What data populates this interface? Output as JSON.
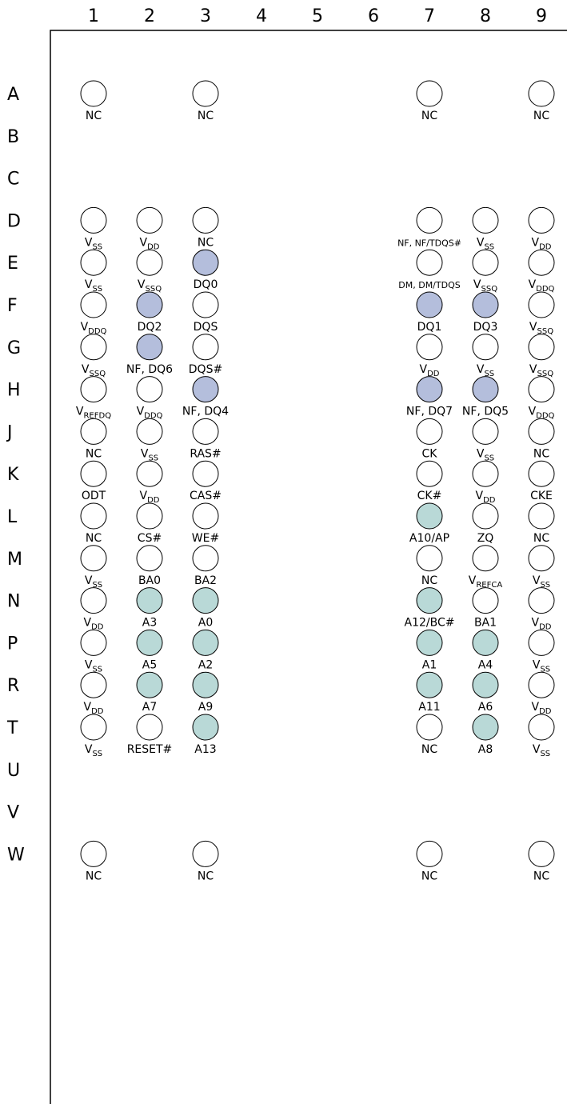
{
  "columns": [
    "1",
    "2",
    "3",
    "4",
    "5",
    "6",
    "7",
    "8",
    "9"
  ],
  "rows": [
    "A",
    "B",
    "C",
    "D",
    "E",
    "F",
    "G",
    "H",
    "J",
    "K",
    "L",
    "M",
    "N",
    "P",
    "R",
    "T",
    "U",
    "V",
    "W"
  ],
  "colors": {
    "data": "#b4bedc",
    "address": "#b9d9d7",
    "empty": "#ffffff",
    "stroke": "#000000"
  },
  "pins": [
    {
      "row": "A",
      "col": "1",
      "label": "NC",
      "type": "empty"
    },
    {
      "row": "A",
      "col": "3",
      "label": "NC",
      "type": "empty"
    },
    {
      "row": "A",
      "col": "7",
      "label": "NC",
      "type": "empty"
    },
    {
      "row": "A",
      "col": "9",
      "label": "NC",
      "type": "empty"
    },
    {
      "row": "D",
      "col": "1",
      "label": "V",
      "sub": "SS",
      "type": "empty"
    },
    {
      "row": "D",
      "col": "2",
      "label": "V",
      "sub": "DD",
      "type": "empty"
    },
    {
      "row": "D",
      "col": "3",
      "label": "NC",
      "type": "empty"
    },
    {
      "row": "D",
      "col": "7",
      "label": "NF, NF/TDQS#",
      "type": "empty",
      "small": true
    },
    {
      "row": "D",
      "col": "8",
      "label": "V",
      "sub": "SS",
      "type": "empty"
    },
    {
      "row": "D",
      "col": "9",
      "label": "V",
      "sub": "DD",
      "type": "empty"
    },
    {
      "row": "E",
      "col": "1",
      "label": "V",
      "sub": "SS",
      "type": "empty"
    },
    {
      "row": "E",
      "col": "2",
      "label": "V",
      "sub": "SSQ",
      "type": "empty"
    },
    {
      "row": "E",
      "col": "3",
      "label": "DQ0",
      "type": "data"
    },
    {
      "row": "E",
      "col": "7",
      "label": "DM, DM/TDQS",
      "type": "empty",
      "small": true
    },
    {
      "row": "E",
      "col": "8",
      "label": "V",
      "sub": "SSQ",
      "type": "empty"
    },
    {
      "row": "E",
      "col": "9",
      "label": "V",
      "sub": "DDQ",
      "type": "empty"
    },
    {
      "row": "F",
      "col": "1",
      "label": "V",
      "sub": "DDQ",
      "type": "empty"
    },
    {
      "row": "F",
      "col": "2",
      "label": "DQ2",
      "type": "data"
    },
    {
      "row": "F",
      "col": "3",
      "label": "DQS",
      "type": "empty"
    },
    {
      "row": "F",
      "col": "7",
      "label": "DQ1",
      "type": "data"
    },
    {
      "row": "F",
      "col": "8",
      "label": "DQ3",
      "type": "data"
    },
    {
      "row": "F",
      "col": "9",
      "label": "V",
      "sub": "SSQ",
      "type": "empty"
    },
    {
      "row": "G",
      "col": "1",
      "label": "V",
      "sub": "SSQ",
      "type": "empty"
    },
    {
      "row": "G",
      "col": "2",
      "label": "NF, DQ6",
      "type": "data"
    },
    {
      "row": "G",
      "col": "3",
      "label": "DQS#",
      "type": "empty"
    },
    {
      "row": "G",
      "col": "7",
      "label": "V",
      "sub": "DD",
      "type": "empty"
    },
    {
      "row": "G",
      "col": "8",
      "label": "V",
      "sub": "SS",
      "type": "empty"
    },
    {
      "row": "G",
      "col": "9",
      "label": "V",
      "sub": "SSQ",
      "type": "empty"
    },
    {
      "row": "H",
      "col": "1",
      "label": "V",
      "sub": "REFDQ",
      "type": "empty"
    },
    {
      "row": "H",
      "col": "2",
      "label": "V",
      "sub": "DDQ",
      "type": "empty"
    },
    {
      "row": "H",
      "col": "3",
      "label": "NF, DQ4",
      "type": "data"
    },
    {
      "row": "H",
      "col": "7",
      "label": "NF, DQ7",
      "type": "data"
    },
    {
      "row": "H",
      "col": "8",
      "label": "NF, DQ5",
      "type": "data"
    },
    {
      "row": "H",
      "col": "9",
      "label": "V",
      "sub": "DDQ",
      "type": "empty"
    },
    {
      "row": "J",
      "col": "1",
      "label": "NC",
      "type": "empty"
    },
    {
      "row": "J",
      "col": "2",
      "label": "V",
      "sub": "SS",
      "type": "empty"
    },
    {
      "row": "J",
      "col": "3",
      "label": "RAS#",
      "type": "empty"
    },
    {
      "row": "J",
      "col": "7",
      "label": "CK",
      "type": "empty"
    },
    {
      "row": "J",
      "col": "8",
      "label": "V",
      "sub": "SS",
      "type": "empty"
    },
    {
      "row": "J",
      "col": "9",
      "label": "NC",
      "type": "empty"
    },
    {
      "row": "K",
      "col": "1",
      "label": "ODT",
      "type": "empty"
    },
    {
      "row": "K",
      "col": "2",
      "label": "V",
      "sub": "DD",
      "type": "empty"
    },
    {
      "row": "K",
      "col": "3",
      "label": "CAS#",
      "type": "empty"
    },
    {
      "row": "K",
      "col": "7",
      "label": "CK#",
      "type": "empty"
    },
    {
      "row": "K",
      "col": "8",
      "label": "V",
      "sub": "DD",
      "type": "empty"
    },
    {
      "row": "K",
      "col": "9",
      "label": "CKE",
      "type": "empty"
    },
    {
      "row": "L",
      "col": "1",
      "label": "NC",
      "type": "empty"
    },
    {
      "row": "L",
      "col": "2",
      "label": "CS#",
      "type": "empty"
    },
    {
      "row": "L",
      "col": "3",
      "label": "WE#",
      "type": "empty"
    },
    {
      "row": "L",
      "col": "7",
      "label": "A10/AP",
      "type": "address"
    },
    {
      "row": "L",
      "col": "8",
      "label": "ZQ",
      "type": "empty"
    },
    {
      "row": "L",
      "col": "9",
      "label": "NC",
      "type": "empty"
    },
    {
      "row": "M",
      "col": "1",
      "label": "V",
      "sub": "SS",
      "type": "empty"
    },
    {
      "row": "M",
      "col": "2",
      "label": "BA0",
      "type": "empty"
    },
    {
      "row": "M",
      "col": "3",
      "label": "BA2",
      "type": "empty"
    },
    {
      "row": "M",
      "col": "7",
      "label": "NC",
      "type": "empty"
    },
    {
      "row": "M",
      "col": "8",
      "label": "V",
      "sub": "REFCA",
      "type": "empty"
    },
    {
      "row": "M",
      "col": "9",
      "label": "V",
      "sub": "SS",
      "type": "empty"
    },
    {
      "row": "N",
      "col": "1",
      "label": "V",
      "sub": "DD",
      "type": "empty"
    },
    {
      "row": "N",
      "col": "2",
      "label": "A3",
      "type": "address"
    },
    {
      "row": "N",
      "col": "3",
      "label": "A0",
      "type": "address"
    },
    {
      "row": "N",
      "col": "7",
      "label": "A12/BC#",
      "type": "address"
    },
    {
      "row": "N",
      "col": "8",
      "label": "BA1",
      "type": "empty"
    },
    {
      "row": "N",
      "col": "9",
      "label": "V",
      "sub": "DD",
      "type": "empty"
    },
    {
      "row": "P",
      "col": "1",
      "label": "V",
      "sub": "SS",
      "type": "empty"
    },
    {
      "row": "P",
      "col": "2",
      "label": "A5",
      "type": "address"
    },
    {
      "row": "P",
      "col": "3",
      "label": "A2",
      "type": "address"
    },
    {
      "row": "P",
      "col": "7",
      "label": "A1",
      "type": "address"
    },
    {
      "row": "P",
      "col": "8",
      "label": "A4",
      "type": "address"
    },
    {
      "row": "P",
      "col": "9",
      "label": "V",
      "sub": "SS",
      "type": "empty"
    },
    {
      "row": "R",
      "col": "1",
      "label": "V",
      "sub": "DD",
      "type": "empty"
    },
    {
      "row": "R",
      "col": "2",
      "label": "A7",
      "type": "address"
    },
    {
      "row": "R",
      "col": "3",
      "label": "A9",
      "type": "address"
    },
    {
      "row": "R",
      "col": "7",
      "label": "A11",
      "type": "address"
    },
    {
      "row": "R",
      "col": "8",
      "label": "A6",
      "type": "address"
    },
    {
      "row": "R",
      "col": "9",
      "label": "V",
      "sub": "DD",
      "type": "empty"
    },
    {
      "row": "T",
      "col": "1",
      "label": "V",
      "sub": "SS",
      "type": "empty"
    },
    {
      "row": "T",
      "col": "2",
      "label": "RESET#",
      "type": "empty"
    },
    {
      "row": "T",
      "col": "3",
      "label": "A13",
      "type": "address"
    },
    {
      "row": "T",
      "col": "7",
      "label": "NC",
      "type": "empty"
    },
    {
      "row": "T",
      "col": "8",
      "label": "A8",
      "type": "address"
    },
    {
      "row": "T",
      "col": "9",
      "label": "V",
      "sub": "SS",
      "type": "empty"
    },
    {
      "row": "W",
      "col": "1",
      "label": "NC",
      "type": "empty"
    },
    {
      "row": "W",
      "col": "3",
      "label": "NC",
      "type": "empty"
    },
    {
      "row": "W",
      "col": "7",
      "label": "NC",
      "type": "empty"
    },
    {
      "row": "W",
      "col": "9",
      "label": "NC",
      "type": "empty"
    }
  ]
}
